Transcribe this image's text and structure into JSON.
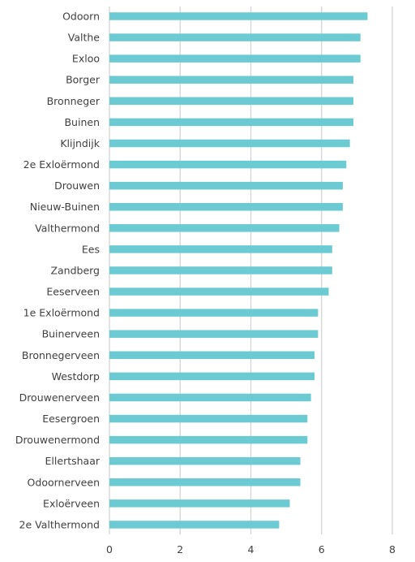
{
  "chart_data": {
    "type": "bar",
    "orientation": "horizontal",
    "categories": [
      "Odoorn",
      "Valthe",
      "Exloo",
      "Borger",
      "Bronneger",
      "Buinen",
      "Klijndijk",
      "2e Exloërmond",
      "Drouwen",
      "Nieuw-Buinen",
      "Valthermond",
      "Ees",
      "Zandberg",
      "Eeserveen",
      "1e Exloërmond",
      "Buinerveen",
      "Bronnegerveen",
      "Westdorp",
      "Drouwenerveen",
      "Eesergroen",
      "Drouwenermond",
      "Ellertshaar",
      "Odoornerveen",
      "Exloërveen",
      "2e Valthermond"
    ],
    "values": [
      7.3,
      7.1,
      7.1,
      6.9,
      6.9,
      6.9,
      6.8,
      6.7,
      6.6,
      6.6,
      6.5,
      6.3,
      6.3,
      6.2,
      5.9,
      5.9,
      5.8,
      5.8,
      5.7,
      5.6,
      5.6,
      5.4,
      5.4,
      5.1,
      4.8
    ],
    "xlim": [
      0,
      8
    ],
    "xticks": [
      "0",
      "2",
      "4",
      "6",
      "8"
    ],
    "title": "",
    "xlabel": "",
    "ylabel": "",
    "grid": "vertical",
    "legend": "none",
    "bar_color": "#6ccbd2",
    "grid_color": "#d4d4d4",
    "text_color": "#404040"
  }
}
